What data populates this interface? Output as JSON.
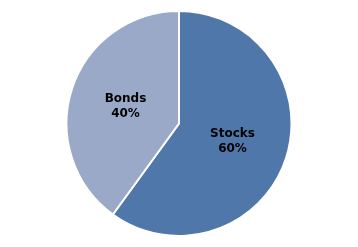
{
  "chart_data": {
    "type": "pie",
    "categories": [
      "Stocks",
      "Bonds"
    ],
    "values": [
      60,
      40
    ],
    "value_labels": [
      "60%",
      "40%"
    ],
    "colors": [
      "#4F77AA",
      "#9BA9C8"
    ],
    "data_labels": true
  }
}
